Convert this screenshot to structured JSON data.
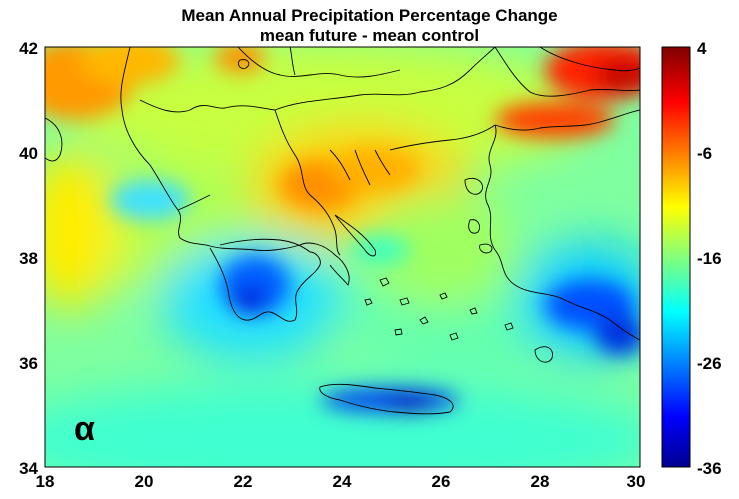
{
  "title": "Mean Annual Precipitation Percentage Change",
  "subtitle": "mean future -  mean control",
  "panel_label": "α",
  "map": {
    "type": "heatmap",
    "lon_range": [
      18,
      30
    ],
    "lat_range": [
      34,
      42
    ],
    "x_ticks": [
      "18",
      "20",
      "22",
      "24",
      "26",
      "28",
      "30"
    ],
    "y_ticks": [
      "42",
      "40",
      "38",
      "36",
      "34"
    ],
    "colorbar": {
      "range": [
        -36,
        4
      ],
      "ticks": [
        "4",
        "-6",
        "-16",
        "-26",
        "-36"
      ],
      "colormap": "jet"
    }
  },
  "colors": {
    "dark_red": "#800000",
    "red": "#ff2000",
    "orange": "#ff9a00",
    "yellow": "#ffff00",
    "cyan": "#00ffff",
    "blue": "#0040ff",
    "dark_blue": "#000090"
  }
}
